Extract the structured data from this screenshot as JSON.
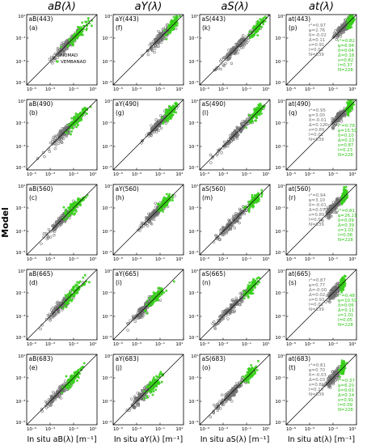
{
  "figure": {
    "ylabel": "Model",
    "column_titles": [
      "aB(λ)",
      "aY(λ)",
      "aS(λ)",
      "at(λ)"
    ],
    "column_xlabels": [
      "In situ aB(λ) [m⁻¹]",
      "In situ aY(λ) [m⁻¹]",
      "In situ aS(λ) [m⁻¹]",
      "In situ at(λ) [m⁻¹]"
    ],
    "legend": [
      {
        "label": "NOMAD",
        "color": "#6e6e6e"
      },
      {
        "label": "VEMBANAD",
        "color": "#3ddc1e"
      }
    ],
    "colors": {
      "nomad": "#6e6e6e",
      "vembanad": "#3ddc1e",
      "line": "#000000"
    }
  },
  "chart_data": {
    "type": "scatter",
    "xscale": "log",
    "yscale": "log",
    "xlim": [
      1e-05,
      10
    ],
    "ylim": [
      1e-05,
      10
    ],
    "xticks": [
      "10⁻⁵",
      "10⁻³",
      "10⁻¹",
      "10¹"
    ],
    "yticks": [
      "10⁻⁵",
      "10⁻³",
      "10⁻¹",
      "10¹"
    ],
    "panels": [
      {
        "letter": "(a)",
        "label": "aB(443)",
        "nomad_center": -1.6,
        "nomad_spread": 0.9,
        "veg_center": -0.6,
        "veg_spread": 0.6
      },
      {
        "letter": "(f)",
        "label": "aY(443)",
        "nomad_center": -0.9,
        "nomad_spread": 0.8,
        "veg_center": 0.1,
        "veg_spread": 0.35
      },
      {
        "letter": "(k)",
        "label": "aS(443)",
        "nomad_center": -1.8,
        "nomad_spread": 1.2,
        "veg_center": 0.0,
        "veg_spread": 0.4
      },
      {
        "letter": "(p)",
        "label": "at(443)",
        "nomad_center": -0.2,
        "nomad_spread": 0.5,
        "veg_center": 0.5,
        "veg_spread": 0.2,
        "nomad_stats": [
          "r²=0.97",
          "ψ=2.76",
          "δ=-0.02",
          "Δ=0.11",
          "s=0.91",
          "I=0.01",
          "N=839"
        ],
        "veg_stats": [
          "r²=0.82",
          "ψ=6.94",
          "δ=0.04",
          "Δ=0.18",
          "s=0.82",
          "I=0.37",
          "N=228"
        ]
      },
      {
        "letter": "(b)",
        "label": "aB(490)",
        "nomad_center": -1.7,
        "nomad_spread": 0.9,
        "veg_center": -0.7,
        "veg_spread": 0.6
      },
      {
        "letter": "(g)",
        "label": "aY(490)",
        "nomad_center": -1.1,
        "nomad_spread": 0.8,
        "veg_center": -0.1,
        "veg_spread": 0.35
      },
      {
        "letter": "(l)",
        "label": "aS(490)",
        "nomad_center": -1.9,
        "nomad_spread": 1.2,
        "veg_center": -0.1,
        "veg_spread": 0.4
      },
      {
        "letter": "(q)",
        "label": "at(490)",
        "nomad_center": -0.4,
        "nomad_spread": 0.5,
        "veg_center": 0.4,
        "veg_spread": 0.2,
        "nomad_stats": [
          "r²=0.95",
          "ψ=3.00",
          "δ=-0.01",
          "Δ=0.12",
          "s=0.89",
          "I=0.01",
          "N=839"
        ],
        "veg_stats": [
          "r²=0.78",
          "ψ=15.59",
          "δ=0.10",
          "Δ=0.23",
          "s=0.87",
          "I=0.23",
          "N=228"
        ]
      },
      {
        "letter": "(c)",
        "label": "aB(560)",
        "nomad_center": -2.0,
        "nomad_spread": 0.9,
        "veg_center": -1.0,
        "veg_spread": 0.6
      },
      {
        "letter": "(h)",
        "label": "aY(560)",
        "nomad_center": -1.6,
        "nomad_spread": 0.8,
        "veg_center": -0.6,
        "veg_spread": 0.4
      },
      {
        "letter": "(m)",
        "label": "aS(560)",
        "nomad_center": -2.1,
        "nomad_spread": 1.1,
        "veg_center": -0.4,
        "veg_spread": 0.4
      },
      {
        "letter": "(r)",
        "label": "at(560)",
        "nomad_center": -0.9,
        "nomad_spread": 0.5,
        "veg_center": 0.0,
        "veg_spread": 0.2,
        "nomad_stats": [
          "r²=0.94",
          "ψ=3.10",
          "δ=-0.01",
          "Δ=0.07",
          "s=0.89",
          "I=0.01",
          "N=839"
        ],
        "veg_stats": [
          "r²=0.81",
          "ψ=26.21",
          "δ=0.09",
          "Δ=0.39",
          "s=1.03",
          "I=0.08",
          "N=228"
        ]
      },
      {
        "letter": "(d)",
        "label": "aB(665)",
        "nomad_center": -2.1,
        "nomad_spread": 0.9,
        "veg_center": -1.0,
        "veg_spread": 0.6
      },
      {
        "letter": "(i)",
        "label": "aY(665)",
        "nomad_center": -2.4,
        "nomad_spread": 0.8,
        "veg_center": -1.3,
        "veg_spread": 0.5
      },
      {
        "letter": "(n)",
        "label": "aS(665)",
        "nomad_center": -2.3,
        "nomad_spread": 1.0,
        "veg_center": -0.6,
        "veg_spread": 0.4
      },
      {
        "letter": "(s)",
        "label": "at(665)",
        "nomad_center": -0.9,
        "nomad_spread": 0.4,
        "veg_center": -0.2,
        "veg_spread": 0.15,
        "nomad_stats": [
          "r²=0.87",
          "ψ=0.77",
          "Δ=-0.00",
          "Δ=0.02",
          "s=0.93",
          "I=0.01",
          "N=839"
        ],
        "veg_stats": [
          "r²=0.48",
          "ψ=10.59",
          "δ=0.06",
          "Δ=0.11",
          "s=1.01",
          "I=0.05",
          "N=228"
        ]
      },
      {
        "letter": "(e)",
        "label": "aB(683)",
        "nomad_center": -2.2,
        "nomad_spread": 0.9,
        "veg_center": -1.1,
        "veg_spread": 0.6
      },
      {
        "letter": "(j)",
        "label": "aY(683)",
        "nomad_center": -2.6,
        "nomad_spread": 0.8,
        "veg_center": -1.5,
        "veg_spread": 0.5
      },
      {
        "letter": "(o)",
        "label": "aS(683)",
        "nomad_center": -2.3,
        "nomad_spread": 1.0,
        "veg_center": -0.7,
        "veg_spread": 0.4
      },
      {
        "letter": "(t)",
        "label": "at(683)",
        "nomad_center": -1.0,
        "nomad_spread": 0.4,
        "veg_center": -0.2,
        "veg_spread": 0.15,
        "nomad_stats": [
          "r²=0.81",
          "ψ=0.70",
          "δ=-0.03",
          "Δ=0.03",
          "s=0.81",
          "I=0.10",
          "N=839"
        ],
        "veg_stats": [
          "r²=0.37",
          "ψ=6.20",
          "δ=0.03",
          "Δ=0.14",
          "s=0.91",
          "I=0.09",
          "N=228"
        ]
      }
    ]
  }
}
